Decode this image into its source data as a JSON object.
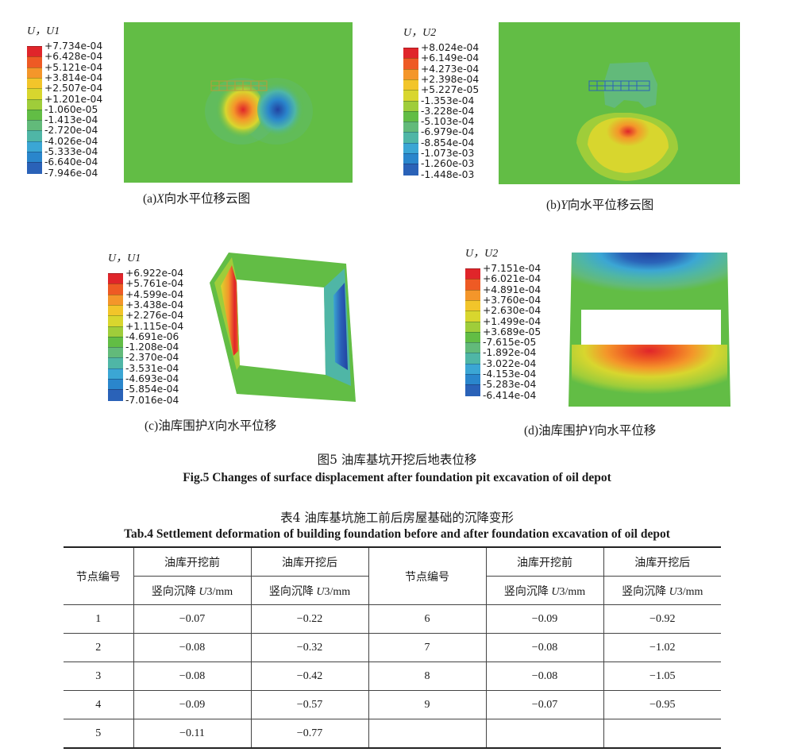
{
  "figure": {
    "panels": [
      {
        "id": "a",
        "legend_title_italic": "U",
        "legend_title_rest": "，U1",
        "ticks": [
          "+7.734e-04",
          "+6.428e-04",
          "+5.121e-04",
          "+3.814e-04",
          "+2.507e-04",
          "+1.201e-04",
          "-1.060e-05",
          "-1.413e-04",
          "-2.720e-04",
          "-4.026e-04",
          "-5.333e-04",
          "-6.640e-04",
          "-7.946e-04"
        ],
        "caption_prefix": "(a)",
        "caption_axis": "X",
        "caption_rest": "向水平位移云图"
      },
      {
        "id": "b",
        "legend_title_italic": "U",
        "legend_title_rest": "，U2",
        "ticks": [
          "+8.024e-04",
          "+6.149e-04",
          "+4.273e-04",
          "+2.398e-04",
          "+5.227e-05",
          "-1.353e-04",
          "-3.228e-04",
          "-5.103e-04",
          "-6.979e-04",
          "-8.854e-04",
          "-1.073e-03",
          "-1.260e-03",
          "-1.448e-03"
        ],
        "caption_prefix": "(b)",
        "caption_axis": "Y",
        "caption_rest": "向水平位移云图"
      },
      {
        "id": "c",
        "legend_title_italic": "U",
        "legend_title_rest": "，U1",
        "ticks": [
          "+6.922e-04",
          "+5.761e-04",
          "+4.599e-04",
          "+3.438e-04",
          "+2.276e-04",
          "+1.115e-04",
          "-4.691e-06",
          "-1.208e-04",
          "-2.370e-04",
          "-3.531e-04",
          "-4.693e-04",
          "-5.854e-04",
          "-7.016e-04"
        ],
        "caption_prefix": "(c)油库围护",
        "caption_axis": "X",
        "caption_rest": "向水平位移"
      },
      {
        "id": "d",
        "legend_title_italic": "U",
        "legend_title_rest": "，U2",
        "ticks": [
          "+7.151e-04",
          "+6.021e-04",
          "+4.891e-04",
          "+3.760e-04",
          "+2.630e-04",
          "+1.499e-04",
          "+3.689e-05",
          "-7.615e-05",
          "-1.892e-04",
          "-3.022e-04",
          "-4.153e-04",
          "-5.283e-04",
          "-6.414e-04"
        ],
        "caption_prefix": "(d)油库围护",
        "caption_axis": "Y",
        "caption_rest": "向水平位移"
      }
    ],
    "legend_colors": [
      "#e0252a",
      "#ee5a24",
      "#f4962a",
      "#f2c52a",
      "#d8d62e",
      "#9fcd3a",
      "#62bd45",
      "#62ba7a",
      "#4fb6a6",
      "#3ba6d4",
      "#2a86cc",
      "#2a62b8",
      "#2243a2"
    ],
    "title_cn": "图5  油库基坑开挖后地表位移",
    "title_en": "Fig.5 Changes of surface displacement after foundation pit excavation of oil depot"
  },
  "table": {
    "title_cn": "表4  油库基坑施工前后房屋基础的沉降变形",
    "title_en": "Tab.4  Settlement deformation of building foundation before and after foundation excavation of oil depot",
    "node_header": "节点编号",
    "before_header": "油库开挖前",
    "after_header": "油库开挖后",
    "sub_prefix": "竖向沉降 ",
    "sub_var": "U",
    "sub_suffix": "3/mm",
    "left_rows": [
      {
        "node": "1",
        "before": "−0.07",
        "after": "−0.22"
      },
      {
        "node": "2",
        "before": "−0.08",
        "after": "−0.32"
      },
      {
        "node": "3",
        "before": "−0.08",
        "after": "−0.42"
      },
      {
        "node": "4",
        "before": "−0.09",
        "after": "−0.57"
      },
      {
        "node": "5",
        "before": "−0.11",
        "after": "−0.77"
      }
    ],
    "right_rows": [
      {
        "node": "6",
        "before": "−0.09",
        "after": "−0.92"
      },
      {
        "node": "7",
        "before": "−0.08",
        "after": "−1.02"
      },
      {
        "node": "8",
        "before": "−0.08",
        "after": "−1.05"
      },
      {
        "node": "9",
        "before": "−0.07",
        "after": "−0.95"
      },
      {
        "node": "",
        "before": "",
        "after": ""
      }
    ]
  }
}
